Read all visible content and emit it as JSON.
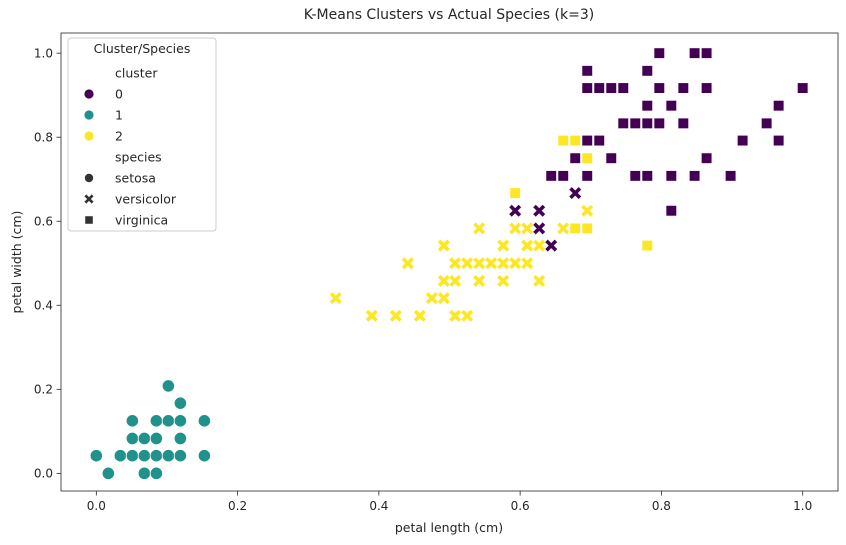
{
  "chart_data": {
    "type": "scatter",
    "title": "K-Means Clusters vs Actual Species (k=3)",
    "xlabel": "petal length (cm)",
    "ylabel": "petal width (cm)",
    "xlim": [
      -0.05,
      1.05
    ],
    "ylim": [
      -0.042,
      1.048
    ],
    "x_ticks": [
      0.0,
      0.2,
      0.4,
      0.6,
      0.8,
      1.0
    ],
    "x_tick_labels": [
      "0.0",
      "0.2",
      "0.4",
      "0.6",
      "0.8",
      "1.0"
    ],
    "y_ticks": [
      0.0,
      0.2,
      0.4,
      0.6,
      0.8,
      1.0
    ],
    "y_tick_labels": [
      "0.0",
      "0.2",
      "0.4",
      "0.6",
      "0.8",
      "1.0"
    ],
    "grid": false,
    "legend": {
      "title": "Cluster/Species",
      "placement": "upper-left",
      "hue_title": "cluster",
      "hue_entries": [
        {
          "label": "0",
          "color": "#440154"
        },
        {
          "label": "1",
          "color": "#21918c"
        },
        {
          "label": "2",
          "color": "#fde725"
        }
      ],
      "style_title": "species",
      "style_entries": [
        {
          "label": "setosa",
          "marker": "circle"
        },
        {
          "label": "versicolor",
          "marker": "x"
        },
        {
          "label": "virginica",
          "marker": "square"
        }
      ]
    },
    "series": [
      {
        "cluster": "1",
        "species": "setosa",
        "marker": "circle",
        "color": "#21918c",
        "points": [
          [
            0.0,
            0.042
          ],
          [
            0.017,
            0.0
          ],
          [
            0.034,
            0.042
          ],
          [
            0.051,
            0.042
          ],
          [
            0.051,
            0.083
          ],
          [
            0.051,
            0.125
          ],
          [
            0.068,
            0.0
          ],
          [
            0.068,
            0.042
          ],
          [
            0.068,
            0.083
          ],
          [
            0.085,
            0.0
          ],
          [
            0.085,
            0.042
          ],
          [
            0.085,
            0.083
          ],
          [
            0.085,
            0.125
          ],
          [
            0.102,
            0.042
          ],
          [
            0.102,
            0.125
          ],
          [
            0.102,
            0.208
          ],
          [
            0.119,
            0.042
          ],
          [
            0.119,
            0.083
          ],
          [
            0.119,
            0.125
          ],
          [
            0.119,
            0.167
          ],
          [
            0.153,
            0.042
          ],
          [
            0.153,
            0.125
          ]
        ]
      },
      {
        "cluster": "2",
        "species": "versicolor",
        "marker": "x",
        "color": "#fde725",
        "points": [
          [
            0.339,
            0.417
          ],
          [
            0.39,
            0.375
          ],
          [
            0.424,
            0.375
          ],
          [
            0.441,
            0.5
          ],
          [
            0.458,
            0.375
          ],
          [
            0.475,
            0.417
          ],
          [
            0.492,
            0.417
          ],
          [
            0.492,
            0.458
          ],
          [
            0.492,
            0.542
          ],
          [
            0.508,
            0.375
          ],
          [
            0.508,
            0.458
          ],
          [
            0.508,
            0.5
          ],
          [
            0.525,
            0.375
          ],
          [
            0.525,
            0.5
          ],
          [
            0.542,
            0.458
          ],
          [
            0.542,
            0.5
          ],
          [
            0.542,
            0.583
          ],
          [
            0.559,
            0.5
          ],
          [
            0.576,
            0.458
          ],
          [
            0.576,
            0.5
          ],
          [
            0.576,
            0.542
          ],
          [
            0.593,
            0.5
          ],
          [
            0.593,
            0.583
          ],
          [
            0.61,
            0.5
          ],
          [
            0.61,
            0.542
          ],
          [
            0.61,
            0.583
          ],
          [
            0.627,
            0.458
          ],
          [
            0.627,
            0.542
          ],
          [
            0.661,
            0.583
          ],
          [
            0.695,
            0.625
          ]
        ]
      },
      {
        "cluster": "0",
        "species": "versicolor",
        "marker": "x",
        "color": "#440154",
        "points": [
          [
            0.593,
            0.625
          ],
          [
            0.627,
            0.583
          ],
          [
            0.627,
            0.625
          ],
          [
            0.644,
            0.542
          ],
          [
            0.678,
            0.667
          ]
        ]
      },
      {
        "cluster": "2",
        "species": "virginica",
        "marker": "square",
        "color": "#fde725",
        "points": [
          [
            0.593,
            0.667
          ],
          [
            0.661,
            0.792
          ],
          [
            0.678,
            0.583
          ],
          [
            0.678,
            0.792
          ],
          [
            0.695,
            0.583
          ],
          [
            0.695,
            0.75
          ],
          [
            0.78,
            0.542
          ]
        ]
      },
      {
        "cluster": "0",
        "species": "virginica",
        "marker": "square",
        "color": "#440154",
        "points": [
          [
            0.644,
            0.708
          ],
          [
            0.661,
            0.708
          ],
          [
            0.678,
            0.75
          ],
          [
            0.695,
            0.708
          ],
          [
            0.695,
            0.792
          ],
          [
            0.695,
            0.917
          ],
          [
            0.695,
            0.958
          ],
          [
            0.712,
            0.792
          ],
          [
            0.712,
            0.917
          ],
          [
            0.729,
            0.75
          ],
          [
            0.729,
            0.917
          ],
          [
            0.746,
            0.833
          ],
          [
            0.746,
            0.917
          ],
          [
            0.763,
            0.708
          ],
          [
            0.763,
            0.833
          ],
          [
            0.78,
            0.708
          ],
          [
            0.78,
            0.833
          ],
          [
            0.78,
            0.875
          ],
          [
            0.78,
            0.958
          ],
          [
            0.797,
            0.833
          ],
          [
            0.797,
            0.917
          ],
          [
            0.797,
            1.0
          ],
          [
            0.814,
            0.625
          ],
          [
            0.814,
            0.708
          ],
          [
            0.814,
            0.875
          ],
          [
            0.831,
            0.833
          ],
          [
            0.831,
            0.917
          ],
          [
            0.847,
            0.708
          ],
          [
            0.847,
            1.0
          ],
          [
            0.864,
            0.75
          ],
          [
            0.864,
            0.917
          ],
          [
            0.864,
            1.0
          ],
          [
            0.898,
            0.708
          ],
          [
            0.915,
            0.792
          ],
          [
            0.949,
            0.833
          ],
          [
            0.966,
            0.792
          ],
          [
            0.966,
            0.875
          ],
          [
            1.0,
            0.917
          ]
        ]
      }
    ]
  }
}
